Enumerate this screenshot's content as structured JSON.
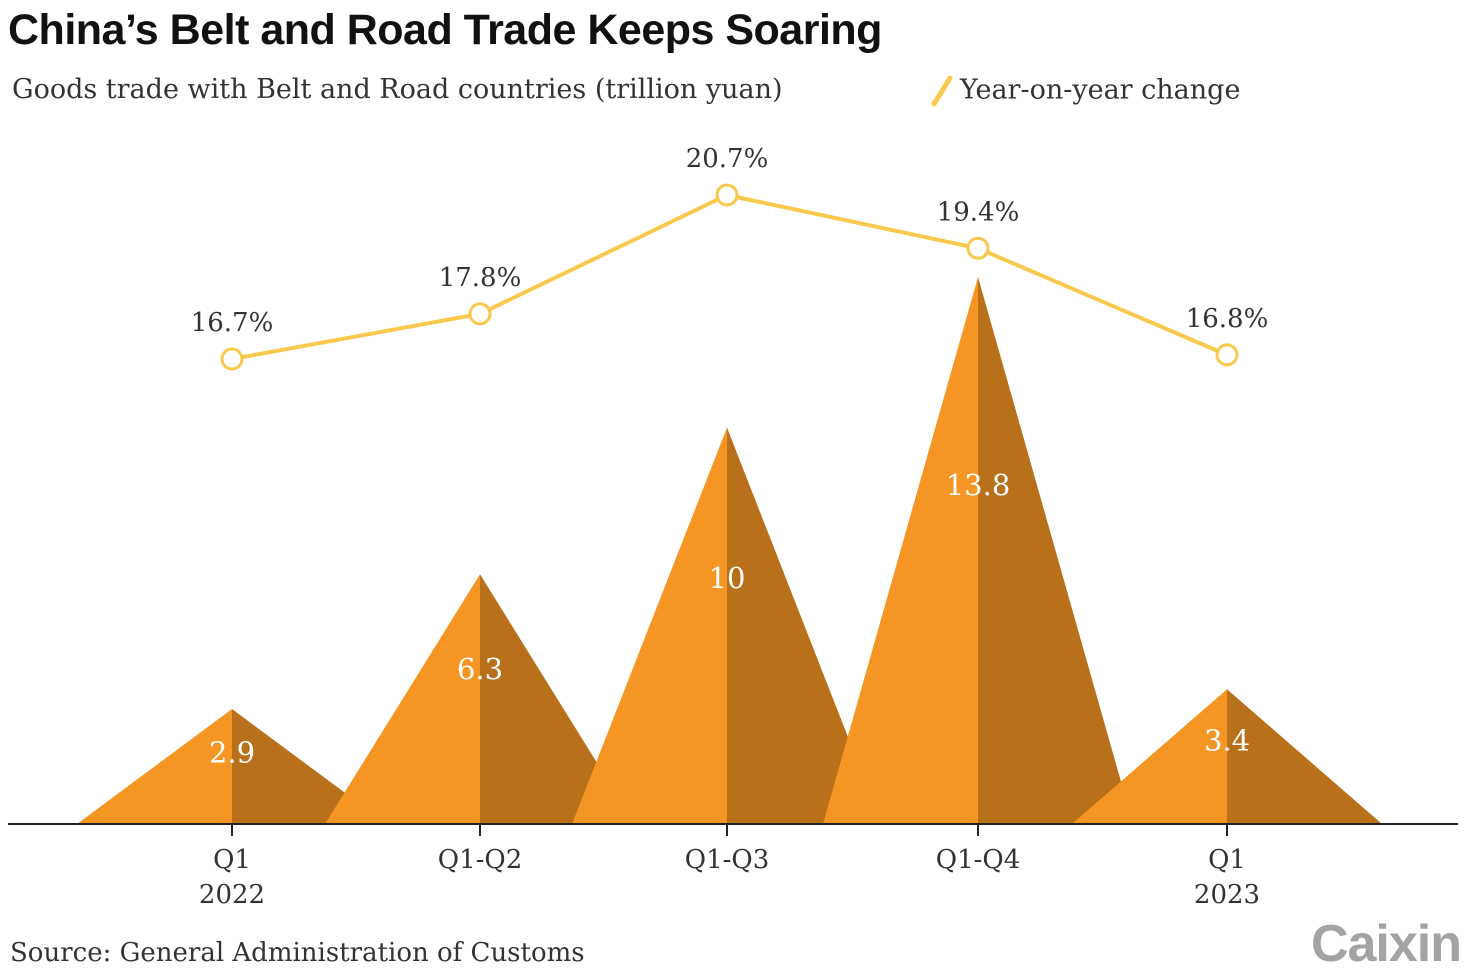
{
  "chart_data": {
    "type": "area",
    "title": "China’s Belt and Road Trade Keeps Soaring",
    "subtitle": "Goods trade with Belt and Road countries (trillion yuan)",
    "categories": [
      {
        "line1": "Q1",
        "line2": "2022"
      },
      {
        "line1": "Q1-Q2",
        "line2": ""
      },
      {
        "line1": "Q1-Q3",
        "line2": ""
      },
      {
        "line1": "Q1-Q4",
        "line2": ""
      },
      {
        "line1": "Q1",
        "line2": "2023"
      }
    ],
    "series": [
      {
        "name": "",
        "kind": "triangle-bar",
        "values": [
          2.9,
          6.3,
          10,
          13.8,
          3.4
        ],
        "labels": [
          "2.9",
          "6.3",
          "10",
          "13.8",
          "3.4"
        ]
      },
      {
        "name": "Year-on-year change",
        "kind": "line",
        "values": [
          16.7,
          17.8,
          20.7,
          19.4,
          16.8
        ],
        "labels": [
          "16.7%",
          "17.8%",
          "20.7%",
          "19.4%",
          "16.8%"
        ]
      }
    ],
    "legend": {
      "label": "Year-on-year change",
      "placement": "top-right"
    },
    "colors": {
      "triangle_light": "#F59624",
      "triangle_dark": "#B8701A",
      "line": "#F9C94E",
      "axis": "#222222"
    },
    "grid": false
  },
  "source": "Source: General Administration of Customs",
  "logo": "Caixin"
}
